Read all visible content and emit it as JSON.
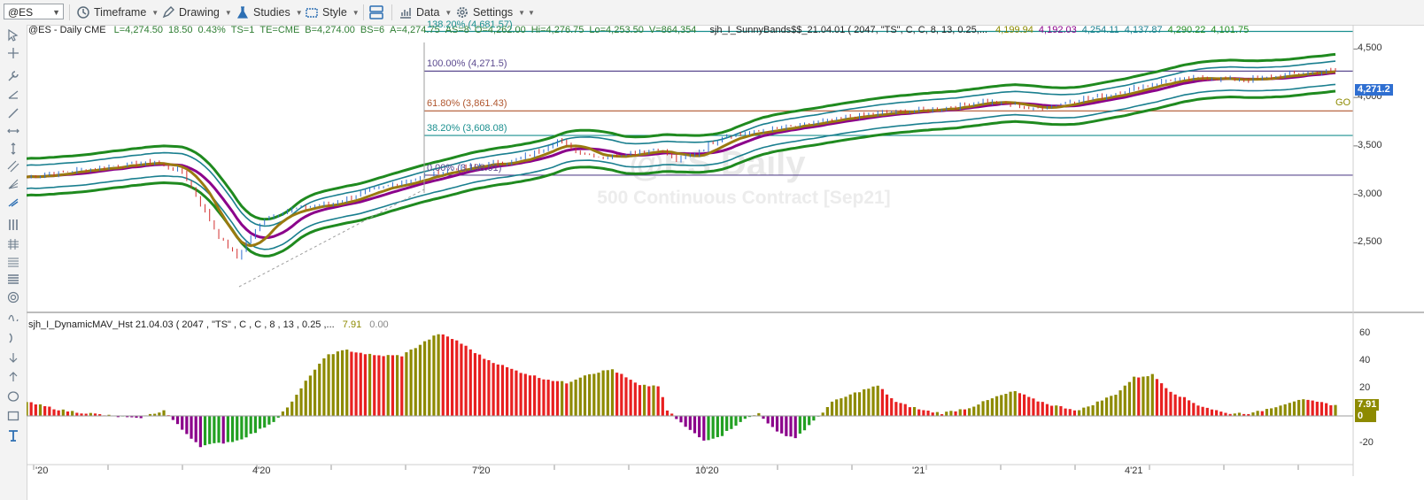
{
  "toolbar": {
    "symbol": "@ES",
    "timeframe": "Timeframe",
    "drawing": "Drawing",
    "studies": "Studies",
    "style": "Style",
    "data": "Data",
    "settings": "Settings"
  },
  "price_pane": {
    "header_title": "@ES - Daily  CME",
    "stats": [
      {
        "text": "L=4,274.50",
        "color": "#2e7d32"
      },
      {
        "text": "18.50",
        "color": "#2e7d32"
      },
      {
        "text": "0.43%",
        "color": "#2e7d32"
      },
      {
        "text": "TS=1",
        "color": "#2e7d32"
      },
      {
        "text": "TE=CME",
        "color": "#2e7d32"
      },
      {
        "text": "B=4,274.00",
        "color": "#2e7d32"
      },
      {
        "text": "BS=6",
        "color": "#2e7d32"
      },
      {
        "text": "A=4,274.75",
        "color": "#2e7d32"
      },
      {
        "text": "AS=8",
        "color": "#2e7d32"
      },
      {
        "text": "O=4,262.00",
        "color": "#2e7d32"
      },
      {
        "text": "Hi=4,276.75",
        "color": "#2e7d32"
      },
      {
        "text": "Lo=4,253.50",
        "color": "#2e7d32"
      },
      {
        "text": "V=864,354",
        "color": "#2e7d32"
      }
    ],
    "study_label": "sjh_I_SunnyBands$$_21.04.01 ( 2047, \"TS\", C, C,   8, 13, 0.25,...",
    "study_values": [
      {
        "text": "4,199.94",
        "color": "#8d8a00"
      },
      {
        "text": "4,192.03",
        "color": "#8b008b"
      },
      {
        "text": "4,254.11",
        "color": "#1a7f8f"
      },
      {
        "text": "4,137.87",
        "color": "#1a7f8f"
      },
      {
        "text": "4,290.22",
        "color": "#228b22"
      },
      {
        "text": "4,101.75",
        "color": "#228b22"
      }
    ],
    "watermark_title": "@ES Daily",
    "watermark_sub": "500 Continuous Contract [Sep21]",
    "go_label": "GO",
    "last_price_tag": "4,271.2",
    "y_ticks": [
      "4,500",
      "4,000",
      "3,500",
      "3,000",
      "2,500"
    ],
    "fib_levels": [
      {
        "label": "138.20% (4,681.57)",
        "price": 4681.57,
        "color": "#1a8f8f"
      },
      {
        "label": "100.00% (4,271.5)",
        "price": 4271.5,
        "color": "#5b4a8f"
      },
      {
        "label": "61.80% (3,861.43)",
        "price": 3861.43,
        "color": "#b0562e"
      },
      {
        "label": "38.20% (3,608.08)",
        "price": 3608.08,
        "color": "#1a8f8f"
      },
      {
        "label": "0.00% (3,198.01)",
        "price": 3198.01,
        "color": "#5b4a8f"
      }
    ]
  },
  "indicator_pane": {
    "label": "sjh_I_DynamicMAV_Hst 21.04.03 ( 2047 , \"TS\" , C , C ,  8 , 13 , 0.25 ,...",
    "value1": "7.91",
    "value2": "0.00",
    "y_ticks": [
      "60",
      "40",
      "20",
      "0",
      "-20"
    ],
    "current_tag": "7.91",
    "zero_tag": "0"
  },
  "x_axis": {
    "labels": [
      "'20",
      "4'20",
      "7'20",
      "10'20",
      "'21",
      "4'21"
    ]
  },
  "chart_data": {
    "type": "candlestick-with-histogram",
    "price_range": [
      2100,
      4750
    ],
    "price_series_anchor": [
      [
        0,
        3180
      ],
      [
        10,
        3240
      ],
      [
        20,
        3300
      ],
      [
        28,
        3330
      ],
      [
        34,
        3230
      ],
      [
        38,
        2900
      ],
      [
        42,
        2560
      ],
      [
        46,
        2350
      ],
      [
        48,
        2500
      ],
      [
        52,
        2750
      ],
      [
        58,
        2850
      ],
      [
        66,
        2900
      ],
      [
        74,
        3020
      ],
      [
        80,
        3100
      ],
      [
        86,
        3180
      ],
      [
        92,
        3250
      ],
      [
        98,
        3300
      ],
      [
        106,
        3340
      ],
      [
        112,
        3450
      ],
      [
        116,
        3560
      ],
      [
        120,
        3450
      ],
      [
        126,
        3380
      ],
      [
        132,
        3430
      ],
      [
        138,
        3470
      ],
      [
        142,
        3350
      ],
      [
        146,
        3420
      ],
      [
        152,
        3600
      ],
      [
        160,
        3650
      ],
      [
        170,
        3720
      ],
      [
        180,
        3800
      ],
      [
        190,
        3850
      ],
      [
        196,
        3870
      ],
      [
        202,
        3900
      ],
      [
        208,
        3960
      ],
      [
        214,
        3940
      ],
      [
        220,
        3880
      ],
      [
        228,
        3960
      ],
      [
        236,
        4020
      ],
      [
        244,
        4120
      ],
      [
        250,
        4180
      ],
      [
        258,
        4200
      ],
      [
        266,
        4180
      ],
      [
        272,
        4210
      ],
      [
        280,
        4260
      ],
      [
        286,
        4274
      ]
    ],
    "histogram_anchor": [
      [
        0,
        10
      ],
      [
        8,
        4
      ],
      [
        16,
        1
      ],
      [
        24,
        -2
      ],
      [
        30,
        4
      ],
      [
        34,
        -10
      ],
      [
        38,
        -22
      ],
      [
        42,
        -20
      ],
      [
        46,
        -18
      ],
      [
        50,
        -12
      ],
      [
        54,
        -4
      ],
      [
        58,
        10
      ],
      [
        62,
        30
      ],
      [
        66,
        45
      ],
      [
        70,
        48
      ],
      [
        76,
        44
      ],
      [
        82,
        44
      ],
      [
        86,
        52
      ],
      [
        90,
        60
      ],
      [
        94,
        55
      ],
      [
        100,
        42
      ],
      [
        106,
        34
      ],
      [
        112,
        28
      ],
      [
        118,
        24
      ],
      [
        122,
        30
      ],
      [
        128,
        34
      ],
      [
        134,
        22
      ],
      [
        138,
        22
      ],
      [
        140,
        4
      ],
      [
        144,
        -8
      ],
      [
        148,
        -18
      ],
      [
        152,
        -14
      ],
      [
        156,
        -4
      ],
      [
        160,
        2
      ],
      [
        164,
        -12
      ],
      [
        168,
        -16
      ],
      [
        172,
        -4
      ],
      [
        176,
        10
      ],
      [
        182,
        18
      ],
      [
        186,
        22
      ],
      [
        190,
        10
      ],
      [
        196,
        4
      ],
      [
        200,
        2
      ],
      [
        206,
        6
      ],
      [
        212,
        14
      ],
      [
        216,
        18
      ],
      [
        220,
        12
      ],
      [
        224,
        8
      ],
      [
        230,
        4
      ],
      [
        234,
        10
      ],
      [
        238,
        16
      ],
      [
        242,
        28
      ],
      [
        246,
        30
      ],
      [
        250,
        18
      ],
      [
        256,
        8
      ],
      [
        262,
        2
      ],
      [
        268,
        2
      ],
      [
        272,
        6
      ],
      [
        278,
        12
      ],
      [
        282,
        10
      ],
      [
        286,
        8
      ]
    ]
  }
}
